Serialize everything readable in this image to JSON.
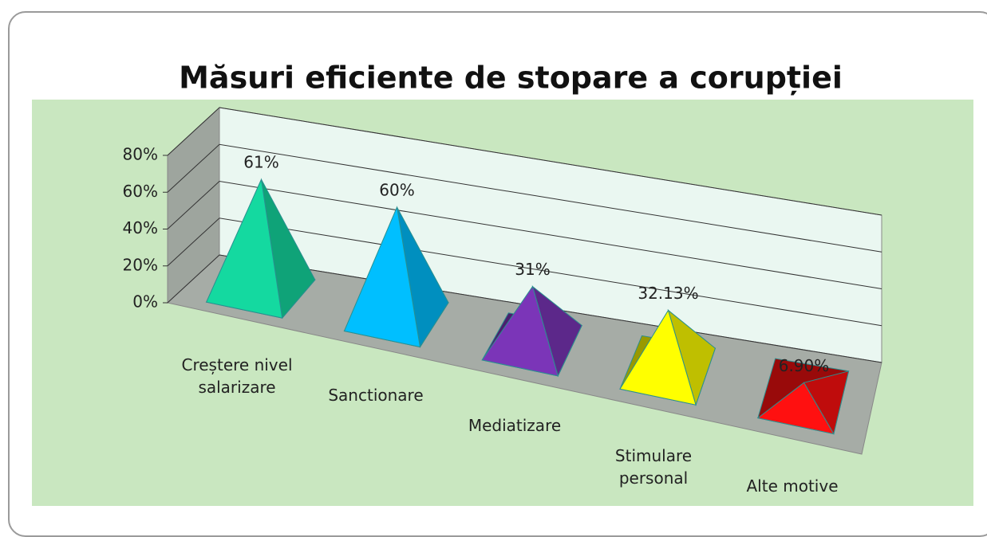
{
  "chart_data": {
    "type": "pyramid3d",
    "title": "Măsuri  eficiente de stopare a corupției",
    "categories": [
      "Creștere nivel salarizare",
      "Sanctionare",
      "Mediatizare",
      "Stimulare personal",
      "Alte motive"
    ],
    "values": [
      61,
      60,
      31,
      32.13,
      6.9
    ],
    "value_labels": [
      "61%",
      "60%",
      "31%",
      "32.13%",
      "6.90%"
    ],
    "colors": [
      "#14d9a0",
      "#00bfff",
      "#7b35b8",
      "#ffff00",
      "#ff1010"
    ],
    "ylim": [
      0,
      80
    ],
    "yticks": [
      {
        "value": 0,
        "label": "0%"
      },
      {
        "value": 20,
        "label": "20%"
      },
      {
        "value": 40,
        "label": "40%"
      },
      {
        "value": 60,
        "label": "60%"
      },
      {
        "value": 80,
        "label": "80%"
      }
    ],
    "grid": true
  }
}
